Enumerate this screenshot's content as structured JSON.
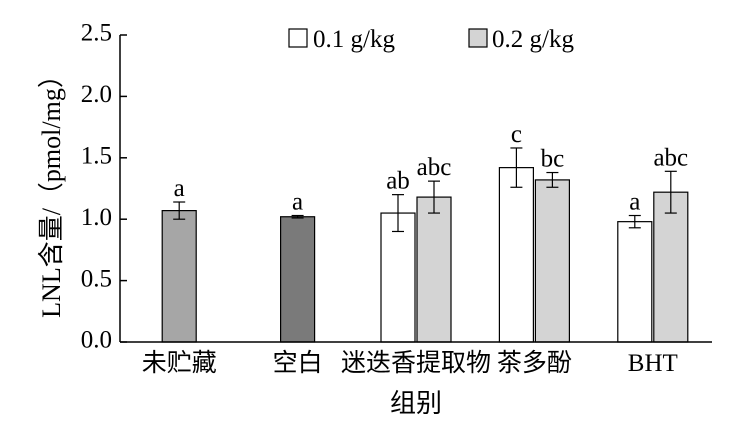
{
  "chart_data": {
    "type": "bar",
    "title": "",
    "xlabel": "组别",
    "ylabel": "LNL含量/（pmol/mg）",
    "ylim": [
      0.0,
      2.5
    ],
    "yticks": [
      "0.0",
      "0.5",
      "1.0",
      "1.5",
      "2.0",
      "2.5"
    ],
    "grid": false,
    "legend_position": "top",
    "categories": [
      "未贮藏",
      "空白",
      "迷迭香提取物",
      "茶多酚",
      "BHT"
    ],
    "series": [
      {
        "name": "0.1 g/kg",
        "color": "#ffffff",
        "values": [
          null,
          null,
          1.05,
          1.42,
          0.98
        ],
        "errors": [
          null,
          null,
          0.15,
          0.16,
          0.05
        ],
        "labels": [
          null,
          null,
          "ab",
          "c",
          "a"
        ]
      },
      {
        "name": "0.2 g/kg",
        "color": "#d4d4d4",
        "values": [
          null,
          null,
          1.18,
          1.32,
          1.22
        ],
        "errors": [
          null,
          null,
          0.13,
          0.06,
          0.17
        ],
        "labels": [
          null,
          null,
          "abc",
          "bc",
          "abc"
        ]
      }
    ],
    "control_bars": [
      {
        "category": "未贮藏",
        "value": 1.07,
        "error": 0.07,
        "label": "a",
        "color": "#a6a6a6"
      },
      {
        "category": "空白",
        "value": 1.02,
        "error": 0.01,
        "label": "a",
        "color": "#7a7a7a"
      }
    ]
  }
}
